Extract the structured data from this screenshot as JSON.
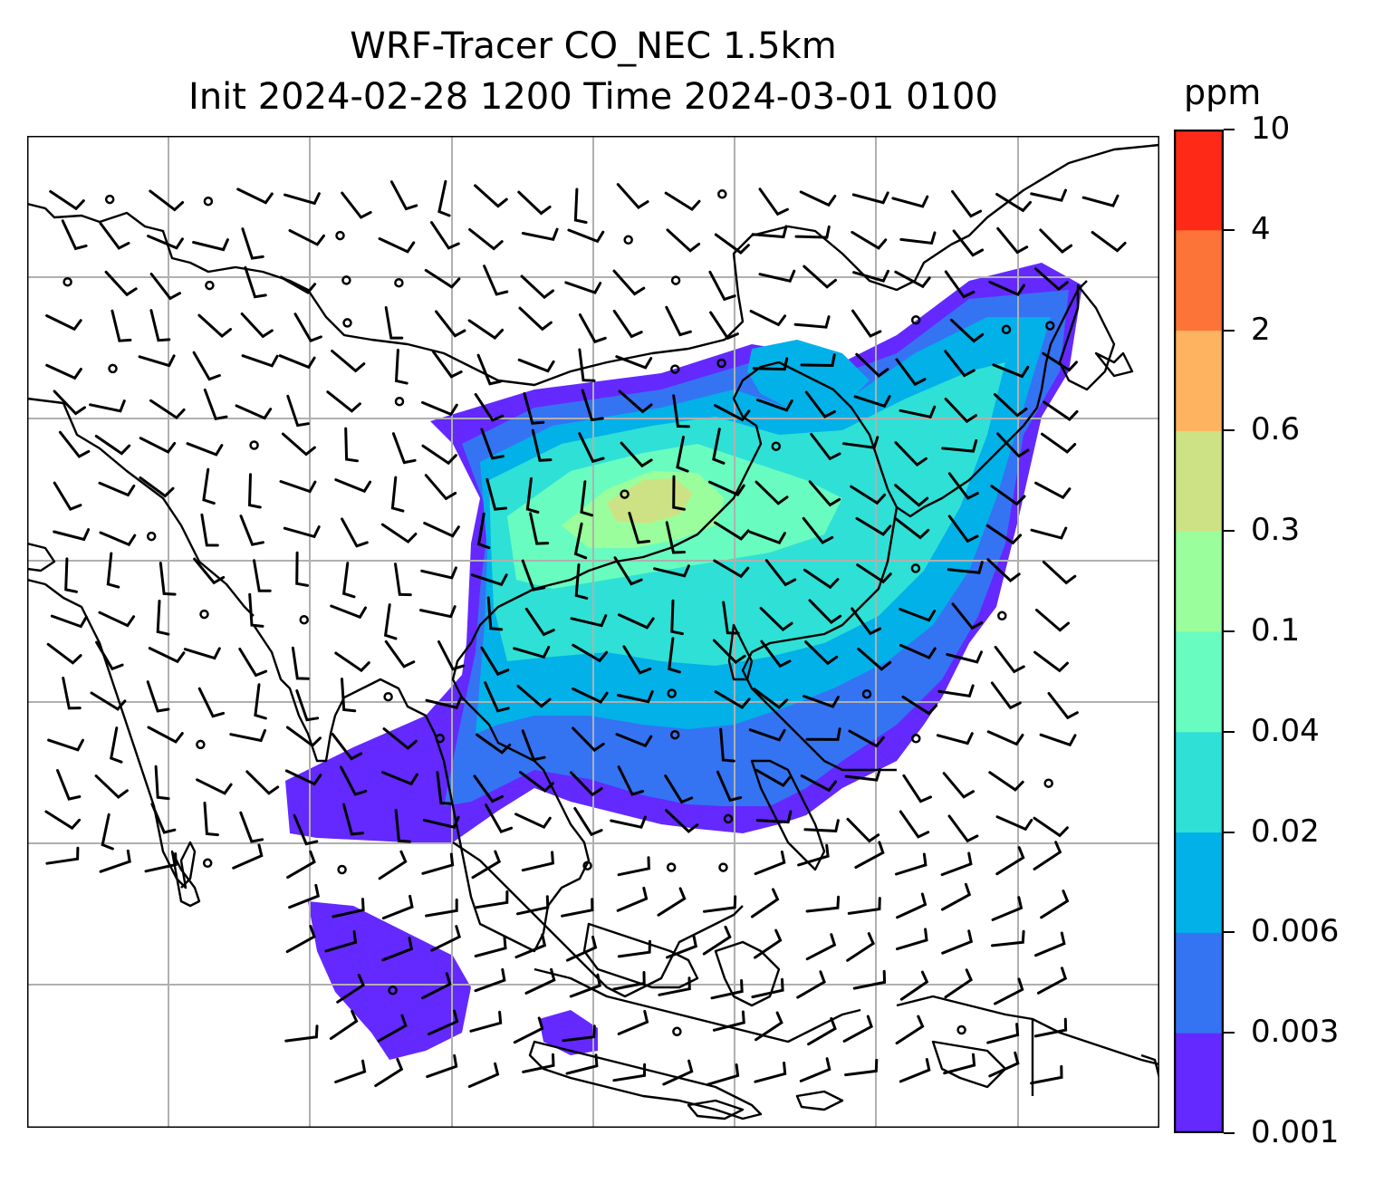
{
  "title_line1": "WRF-Tracer CO_NEC 1.5km",
  "title_line2": "Init 2024-02-28 1200 Time 2024-03-01 0100",
  "colorbar": {
    "unit": "ppm",
    "levels": [
      "0.001",
      "0.003",
      "0.006",
      "0.02",
      "0.04",
      "0.1",
      "0.3",
      "0.6",
      "2",
      "4",
      "10"
    ],
    "colors": [
      "#6329ff",
      "#3474f3",
      "#02b1e8",
      "#2fe0d6",
      "#69fcc0",
      "#9bfe9c",
      "#cde285",
      "#fdb35f",
      "#fd7439",
      "#fe2a17"
    ]
  },
  "map": {
    "coastline_color": "#000000",
    "gridline_color": "#b0b0b0",
    "wind_barb_color": "#000000"
  }
}
